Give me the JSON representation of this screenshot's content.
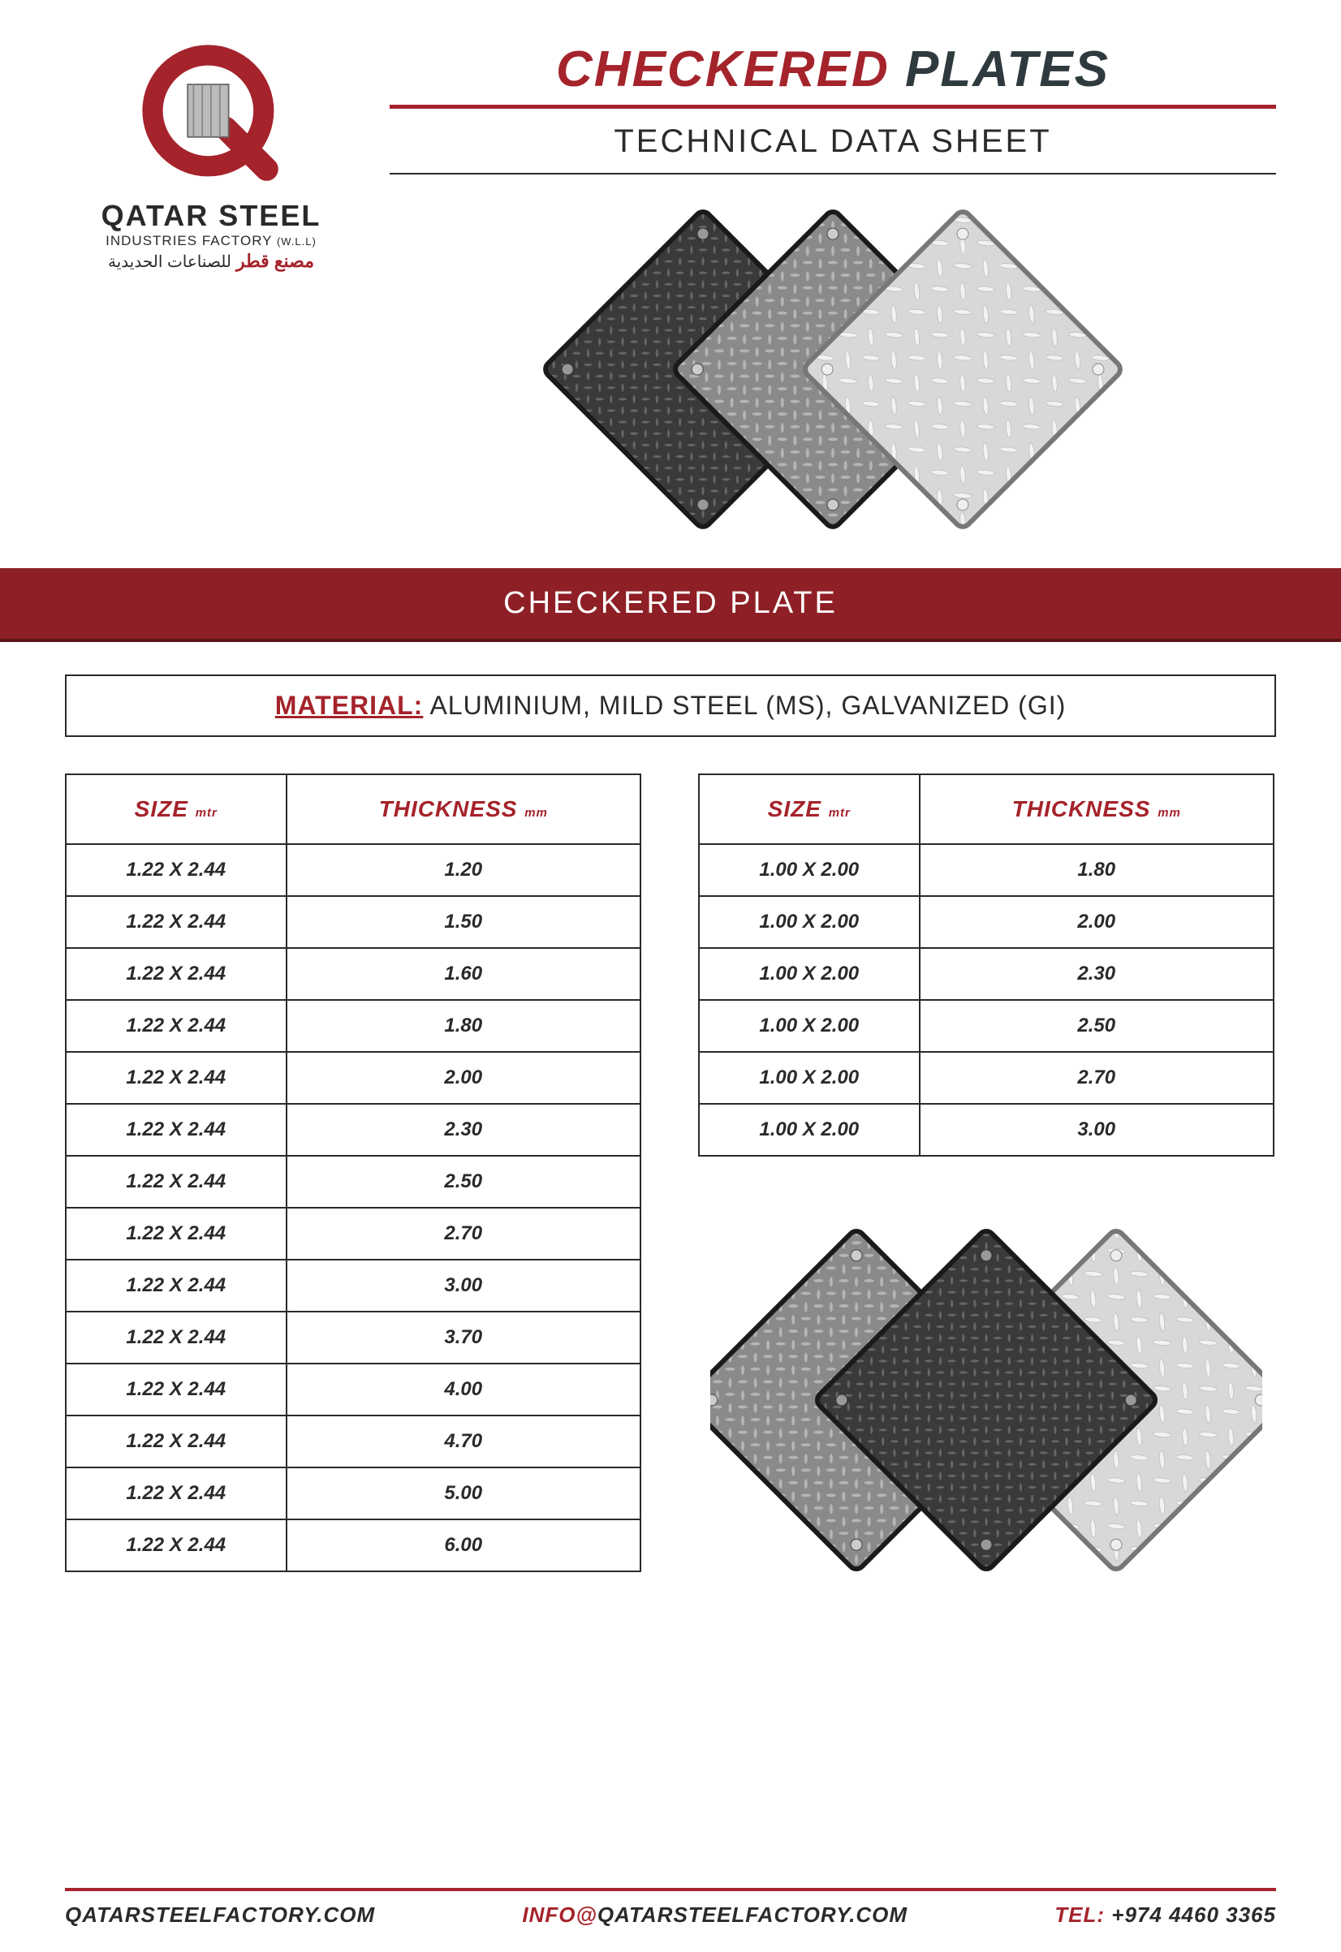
{
  "logo": {
    "name_line1": "QATAR STEEL",
    "name_line2_a": "INDUSTRIES FACTORY",
    "name_line2_b": "(W.L.L)",
    "arabic_red": "مصنع قطر",
    "arabic_dark": "للصناعات الحديدية"
  },
  "title": {
    "word1": "CHECKERED",
    "word2": "PLATES",
    "subtitle": "TECHNICAL DATA SHEET"
  },
  "section_bar": "CHECKERED PLATE",
  "material": {
    "label": "MATERIAL:",
    "value": "ALUMINIUM, MILD STEEL (MS), GALVANIZED (GI)"
  },
  "table_headers": {
    "size": "SIZE",
    "size_unit": "mtr",
    "thickness": "THICKNESS",
    "thickness_unit": "mm"
  },
  "table_left": {
    "rows": [
      {
        "size": "1.22 X 2.44",
        "thickness": "1.20"
      },
      {
        "size": "1.22 X 2.44",
        "thickness": "1.50"
      },
      {
        "size": "1.22 X 2.44",
        "thickness": "1.60"
      },
      {
        "size": "1.22 X 2.44",
        "thickness": "1.80"
      },
      {
        "size": "1.22 X 2.44",
        "thickness": "2.00"
      },
      {
        "size": "1.22 X 2.44",
        "thickness": "2.30"
      },
      {
        "size": "1.22 X 2.44",
        "thickness": "2.50"
      },
      {
        "size": "1.22 X 2.44",
        "thickness": "2.70"
      },
      {
        "size": "1.22 X 2.44",
        "thickness": "3.00"
      },
      {
        "size": "1.22 X 2.44",
        "thickness": "3.70"
      },
      {
        "size": "1.22 X 2.44",
        "thickness": "4.00"
      },
      {
        "size": "1.22 X 2.44",
        "thickness": "4.70"
      },
      {
        "size": "1.22 X 2.44",
        "thickness": "5.00"
      },
      {
        "size": "1.22 X 2.44",
        "thickness": "6.00"
      }
    ]
  },
  "table_right": {
    "rows": [
      {
        "size": "1.00 X 2.00",
        "thickness": "1.80"
      },
      {
        "size": "1.00 X 2.00",
        "thickness": "2.00"
      },
      {
        "size": "1.00 X 2.00",
        "thickness": "2.30"
      },
      {
        "size": "1.00 X 2.00",
        "thickness": "2.50"
      },
      {
        "size": "1.00 X 2.00",
        "thickness": "2.70"
      },
      {
        "size": "1.00 X 2.00",
        "thickness": "3.00"
      }
    ]
  },
  "footer": {
    "website": "QATARSTEELFACTORY.COM",
    "email_prefix": "INFO",
    "email_at": "@",
    "email_domain": "QATARSTEELFACTORY.COM",
    "tel_label": "TEL:",
    "tel_value": "+974 4460 3365"
  },
  "colors": {
    "brand_red": "#a5232b",
    "brand_dark": "#2f3a3f",
    "bar_red": "#8e1f26",
    "text": "#2a2a2a"
  },
  "plate_graphic": {
    "plate_colors": [
      "#3a3a3a",
      "#8a8a8a",
      "#d8d8d8"
    ],
    "stroke": "#1a1a1a"
  }
}
